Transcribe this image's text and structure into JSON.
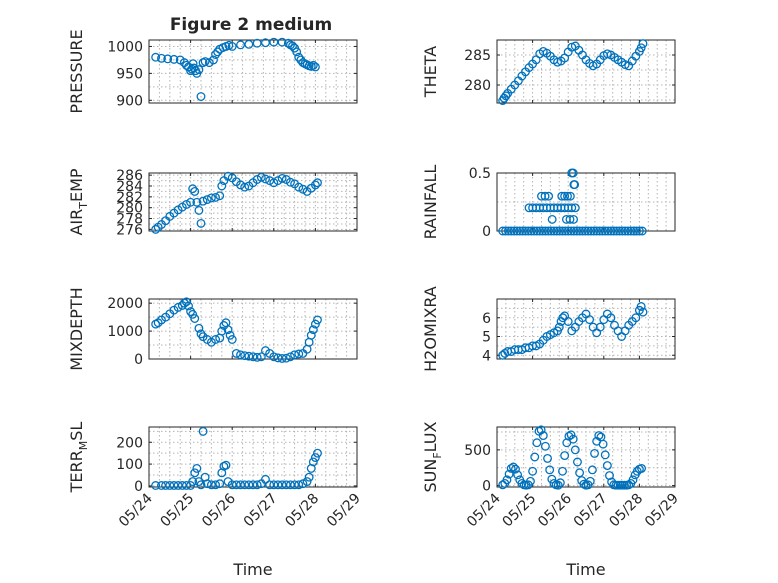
{
  "figure": {
    "title": "Figure 2 medium",
    "marker_color": "#0072bd",
    "marker_shape": "circle",
    "grid": "dotted minor and major"
  },
  "chart_data": [
    {
      "type": "scatter",
      "ylabel": "PRESSURE",
      "xlabel": "",
      "xlim": [
        0,
        5
      ],
      "x_ticks": [
        0,
        1,
        2,
        3,
        4,
        5
      ],
      "x_tick_labels": [
        "05/24",
        "05/25",
        "05/26",
        "05/27",
        "05/28",
        "05/29"
      ],
      "show_x_tick_labels": false,
      "ylim": [
        895,
        1012
      ],
      "y_ticks": [
        900,
        950,
        1000
      ],
      "y_tick_labels": [
        "900",
        "950",
        "1000"
      ],
      "x": [
        0.16,
        0.3,
        0.45,
        0.6,
        0.75,
        0.85,
        0.9,
        0.95,
        1.0,
        1.03,
        1.06,
        1.08,
        1.12,
        1.15,
        1.2,
        1.25,
        1.3,
        1.35,
        1.45,
        1.55,
        1.6,
        1.65,
        1.7,
        1.78,
        1.85,
        1.92,
        2.0,
        2.2,
        2.4,
        2.6,
        2.8,
        3.0,
        3.2,
        3.35,
        3.4,
        3.45,
        3.5,
        3.55,
        3.6,
        3.65,
        3.7,
        3.75,
        3.8,
        3.85,
        3.9,
        3.95,
        4.0
      ],
      "y": [
        980,
        978,
        977,
        976,
        975,
        970,
        965,
        962,
        955,
        958,
        968,
        960,
        955,
        950,
        957,
        907,
        970,
        972,
        970,
        975,
        985,
        990,
        995,
        998,
        1000,
        1002,
        1000,
        1003,
        1004,
        1006,
        1007,
        1008,
        1008,
        1006,
        1003,
        1001,
        997,
        990,
        980,
        975,
        970,
        968,
        966,
        964,
        963,
        965,
        962
      ]
    },
    {
      "type": "scatter",
      "ylabel": "THETA",
      "xlabel": "",
      "xlim": [
        0,
        5
      ],
      "x_ticks": [
        0,
        1,
        2,
        3,
        4,
        5
      ],
      "x_tick_labels": [
        "05/24",
        "05/25",
        "05/26",
        "05/27",
        "05/28",
        "05/29"
      ],
      "show_x_tick_labels": false,
      "ylim": [
        277,
        287.5
      ],
      "y_ticks": [
        280,
        285
      ],
      "y_tick_labels": [
        "280",
        "285"
      ],
      "x": [
        0.16,
        0.2,
        0.25,
        0.3,
        0.4,
        0.5,
        0.6,
        0.7,
        0.8,
        0.9,
        1.0,
        1.1,
        1.2,
        1.3,
        1.4,
        1.5,
        1.6,
        1.7,
        1.8,
        1.9,
        2.0,
        2.1,
        2.2,
        2.3,
        2.4,
        2.5,
        2.6,
        2.7,
        2.8,
        2.9,
        3.0,
        3.1,
        3.2,
        3.3,
        3.4,
        3.5,
        3.6,
        3.7,
        3.8,
        3.9,
        4.0,
        4.05,
        4.1
      ],
      "y": [
        277.4,
        277.8,
        278.2,
        278.6,
        279.3,
        280.0,
        280.7,
        281.5,
        282.2,
        282.9,
        283.5,
        284.2,
        285.2,
        285.6,
        285.3,
        284.8,
        284.2,
        283.8,
        284.0,
        284.5,
        285.5,
        286.3,
        286.5,
        285.8,
        285.0,
        284.2,
        283.6,
        283.2,
        283.5,
        284.2,
        284.9,
        285.2,
        285.0,
        284.6,
        284.2,
        283.8,
        283.4,
        283.2,
        284.0,
        284.8,
        285.6,
        286.2,
        286.9
      ]
    },
    {
      "type": "scatter",
      "ylabel": "AIR_TEMP",
      "xlabel": "",
      "xlim": [
        0,
        5
      ],
      "x_ticks": [
        0,
        1,
        2,
        3,
        4,
        5
      ],
      "x_tick_labels": [
        "05/24",
        "05/25",
        "05/26",
        "05/27",
        "05/28",
        "05/29"
      ],
      "show_x_tick_labels": false,
      "ylim": [
        275.7,
        286.4
      ],
      "y_ticks": [
        276,
        278,
        280,
        282,
        284,
        286
      ],
      "y_tick_labels": [
        "276",
        "278",
        "280",
        "282",
        "284",
        "286"
      ],
      "x": [
        0.16,
        0.22,
        0.3,
        0.4,
        0.5,
        0.6,
        0.7,
        0.8,
        0.9,
        1.0,
        1.05,
        1.1,
        1.15,
        1.2,
        1.25,
        1.3,
        1.4,
        1.5,
        1.6,
        1.7,
        1.75,
        1.8,
        1.9,
        2.0,
        2.1,
        2.2,
        2.3,
        2.4,
        2.5,
        2.6,
        2.7,
        2.8,
        2.9,
        3.0,
        3.1,
        3.2,
        3.3,
        3.4,
        3.5,
        3.6,
        3.7,
        3.8,
        3.9,
        4.0,
        4.05
      ],
      "y": [
        276.0,
        276.4,
        276.9,
        277.6,
        278.4,
        279.0,
        279.6,
        280.1,
        280.6,
        281.0,
        283.5,
        283.0,
        281.0,
        279.5,
        277.1,
        281.2,
        281.5,
        281.8,
        281.9,
        282.2,
        284.0,
        285.0,
        285.8,
        285.5,
        284.8,
        284.2,
        283.8,
        284.0,
        284.6,
        285.2,
        285.6,
        285.3,
        285.0,
        284.6,
        285.0,
        285.4,
        285.2,
        284.7,
        284.4,
        283.8,
        283.4,
        283.0,
        283.6,
        284.2,
        284.6
      ]
    },
    {
      "type": "scatter",
      "ylabel": "RAINFALL",
      "xlabel": "",
      "xlim": [
        0,
        5
      ],
      "x_ticks": [
        0,
        1,
        2,
        3,
        4,
        5
      ],
      "x_tick_labels": [
        "05/24",
        "05/25",
        "05/26",
        "05/27",
        "05/28",
        "05/29"
      ],
      "show_x_tick_labels": false,
      "ylim": [
        0,
        0.5
      ],
      "y_ticks": [
        0,
        0.5
      ],
      "y_tick_labels": [
        "0",
        "0.5"
      ],
      "x": [
        0.16,
        0.24,
        0.32,
        0.4,
        0.48,
        0.56,
        0.64,
        0.72,
        0.8,
        0.88,
        0.96,
        1.04,
        1.12,
        1.2,
        1.28,
        1.36,
        1.44,
        1.52,
        1.6,
        1.68,
        1.76,
        1.84,
        1.92,
        2.0,
        2.08,
        2.16,
        2.24,
        2.32,
        2.4,
        2.48,
        2.56,
        2.64,
        2.72,
        2.8,
        2.88,
        2.96,
        3.04,
        3.12,
        3.2,
        3.28,
        3.36,
        3.44,
        3.52,
        3.6,
        3.68,
        3.76,
        3.84,
        3.92,
        4.0,
        4.08,
        0.9,
        1.0,
        1.1,
        1.2,
        1.3,
        1.4,
        1.5,
        1.6,
        1.7,
        1.8,
        1.9,
        2.0,
        2.1,
        2.2,
        1.25,
        1.35,
        1.45,
        1.55,
        1.95,
        2.05,
        2.15,
        1.82,
        1.9,
        1.98,
        2.06,
        2.16,
        2.1,
        2.14,
        2.18
      ],
      "y": [
        0,
        0,
        0,
        0,
        0,
        0,
        0,
        0,
        0,
        0,
        0,
        0,
        0,
        0,
        0,
        0,
        0,
        0,
        0,
        0,
        0,
        0,
        0,
        0,
        0,
        0,
        0,
        0,
        0,
        0,
        0,
        0,
        0,
        0,
        0,
        0,
        0,
        0,
        0,
        0,
        0,
        0,
        0,
        0,
        0,
        0,
        0,
        0,
        0,
        0,
        0.2,
        0.2,
        0.2,
        0.2,
        0.2,
        0.2,
        0.2,
        0.2,
        0.2,
        0.2,
        0.2,
        0.2,
        0.2,
        0.2,
        0.3,
        0.3,
        0.3,
        0.1,
        0.1,
        0.1,
        0.1,
        0.3,
        0.3,
        0.3,
        0.3,
        0.4,
        0.5,
        0.5,
        0.4
      ]
    },
    {
      "type": "scatter",
      "ylabel": "MIXDEPTH",
      "xlabel": "",
      "xlim": [
        0,
        5
      ],
      "x_ticks": [
        0,
        1,
        2,
        3,
        4,
        5
      ],
      "x_tick_labels": [
        "05/24",
        "05/25",
        "05/26",
        "05/27",
        "05/28",
        "05/29"
      ],
      "show_x_tick_labels": false,
      "ylim": [
        0,
        2150
      ],
      "y_ticks": [
        0,
        1000,
        2000
      ],
      "y_tick_labels": [
        "0",
        "1000",
        "2000"
      ],
      "x": [
        0.16,
        0.22,
        0.3,
        0.4,
        0.5,
        0.6,
        0.7,
        0.8,
        0.85,
        0.9,
        0.95,
        1.0,
        1.05,
        1.1,
        1.2,
        1.25,
        1.3,
        1.4,
        1.5,
        1.6,
        1.7,
        1.75,
        1.8,
        1.85,
        1.9,
        1.95,
        2.0,
        2.1,
        2.2,
        2.3,
        2.4,
        2.5,
        2.6,
        2.7,
        2.8,
        2.9,
        3.0,
        3.1,
        3.2,
        3.3,
        3.4,
        3.5,
        3.6,
        3.7,
        3.8,
        3.85,
        3.9,
        3.95,
        4.0,
        4.05
      ],
      "y": [
        1250,
        1300,
        1400,
        1500,
        1620,
        1750,
        1850,
        1920,
        2000,
        2050,
        1900,
        1700,
        1600,
        1450,
        1100,
        900,
        800,
        700,
        600,
        700,
        750,
        1000,
        1200,
        1300,
        1050,
        850,
        700,
        200,
        150,
        120,
        100,
        80,
        60,
        80,
        300,
        200,
        80,
        40,
        20,
        30,
        80,
        150,
        180,
        200,
        350,
        600,
        850,
        1050,
        1250,
        1400
      ]
    },
    {
      "type": "scatter",
      "ylabel": "H2OMIXRA",
      "xlabel": "",
      "xlim": [
        0,
        5
      ],
      "x_ticks": [
        0,
        1,
        2,
        3,
        4,
        5
      ],
      "x_tick_labels": [
        "05/24",
        "05/25",
        "05/26",
        "05/27",
        "05/28",
        "05/29"
      ],
      "show_x_tick_labels": false,
      "ylim": [
        3.8,
        7.0
      ],
      "y_ticks": [
        4,
        5,
        6
      ],
      "y_tick_labels": [
        "4",
        "5",
        "6"
      ],
      "x": [
        0.16,
        0.22,
        0.3,
        0.4,
        0.5,
        0.6,
        0.7,
        0.8,
        0.9,
        1.0,
        1.1,
        1.2,
        1.3,
        1.4,
        1.5,
        1.6,
        1.7,
        1.75,
        1.8,
        1.85,
        1.9,
        2.0,
        2.1,
        2.2,
        2.3,
        2.4,
        2.5,
        2.6,
        2.7,
        2.8,
        2.9,
        3.0,
        3.1,
        3.2,
        3.3,
        3.4,
        3.5,
        3.6,
        3.7,
        3.8,
        3.9,
        4.0,
        4.05,
        4.1
      ],
      "y": [
        4.0,
        4.1,
        4.2,
        4.2,
        4.3,
        4.3,
        4.3,
        4.4,
        4.4,
        4.5,
        4.5,
        4.6,
        4.8,
        5.0,
        5.1,
        5.2,
        5.3,
        5.5,
        5.8,
        6.0,
        6.1,
        5.8,
        5.3,
        5.5,
        5.8,
        6.0,
        6.2,
        5.9,
        5.5,
        5.2,
        5.5,
        5.9,
        6.2,
        6.0,
        5.6,
        5.3,
        5.0,
        5.3,
        5.6,
        5.8,
        6.0,
        6.4,
        6.6,
        6.3
      ]
    },
    {
      "type": "scatter",
      "ylabel": "TERR_MSL",
      "xlabel": "Time",
      "xlim": [
        0,
        5
      ],
      "x_ticks": [
        0,
        1,
        2,
        3,
        4,
        5
      ],
      "x_tick_labels": [
        "05/24",
        "05/25",
        "05/26",
        "05/27",
        "05/28",
        "05/29"
      ],
      "show_x_tick_labels": true,
      "ylim": [
        -5,
        270
      ],
      "y_ticks": [
        0,
        100,
        200
      ],
      "y_tick_labels": [
        "0",
        "100",
        "200"
      ],
      "x": [
        0.16,
        0.3,
        0.4,
        0.5,
        0.6,
        0.7,
        0.8,
        0.9,
        1.0,
        1.05,
        1.1,
        1.15,
        1.2,
        1.25,
        1.3,
        1.35,
        1.4,
        1.5,
        1.6,
        1.7,
        1.75,
        1.8,
        1.85,
        1.9,
        2.0,
        2.1,
        2.2,
        2.3,
        2.4,
        2.5,
        2.6,
        2.7,
        2.8,
        2.9,
        3.0,
        3.1,
        3.2,
        3.3,
        3.4,
        3.5,
        3.6,
        3.7,
        3.8,
        3.85,
        3.9,
        3.95,
        4.0,
        4.05
      ],
      "y": [
        2,
        2,
        2,
        2,
        2,
        2,
        2,
        2,
        2,
        20,
        60,
        80,
        20,
        5,
        250,
        40,
        10,
        5,
        5,
        10,
        60,
        90,
        95,
        20,
        5,
        5,
        5,
        5,
        5,
        5,
        5,
        10,
        30,
        5,
        5,
        5,
        5,
        5,
        5,
        5,
        5,
        10,
        20,
        40,
        80,
        110,
        130,
        150
      ]
    },
    {
      "type": "scatter",
      "ylabel": "SUN_FLUX",
      "xlabel": "Time",
      "xlim": [
        0,
        5
      ],
      "x_ticks": [
        0,
        1,
        2,
        3,
        4,
        5
      ],
      "x_tick_labels": [
        "05/24",
        "05/25",
        "05/26",
        "05/27",
        "05/28",
        "05/29"
      ],
      "show_x_tick_labels": true,
      "ylim": [
        -20,
        820
      ],
      "y_ticks": [
        0,
        500
      ],
      "y_tick_labels": [
        "0",
        "500"
      ],
      "x": [
        0.16,
        0.22,
        0.28,
        0.34,
        0.4,
        0.46,
        0.52,
        0.58,
        0.64,
        0.7,
        0.76,
        0.82,
        0.88,
        0.94,
        1.0,
        1.06,
        1.12,
        1.18,
        1.24,
        1.3,
        1.36,
        1.42,
        1.48,
        1.54,
        1.6,
        1.66,
        1.72,
        1.78,
        1.84,
        1.9,
        1.96,
        2.02,
        2.08,
        2.14,
        2.2,
        2.26,
        2.32,
        2.38,
        2.44,
        2.5,
        2.56,
        2.62,
        2.68,
        2.74,
        2.8,
        2.86,
        2.92,
        2.98,
        3.04,
        3.1,
        3.16,
        3.22,
        3.28,
        3.34,
        3.4,
        3.46,
        3.52,
        3.58,
        3.64,
        3.7,
        3.76,
        3.82,
        3.88,
        3.94,
        4.0,
        4.06
      ],
      "y": [
        10,
        30,
        80,
        160,
        240,
        260,
        230,
        150,
        80,
        30,
        10,
        5,
        10,
        60,
        200,
        400,
        600,
        760,
        780,
        700,
        550,
        380,
        220,
        90,
        30,
        10,
        5,
        40,
        200,
        420,
        600,
        690,
        710,
        650,
        500,
        330,
        180,
        70,
        20,
        5,
        10,
        60,
        220,
        450,
        620,
        700,
        680,
        580,
        430,
        280,
        140,
        50,
        10,
        5,
        5,
        5,
        5,
        5,
        5,
        10,
        30,
        80,
        150,
        200,
        230,
        240
      ]
    }
  ]
}
